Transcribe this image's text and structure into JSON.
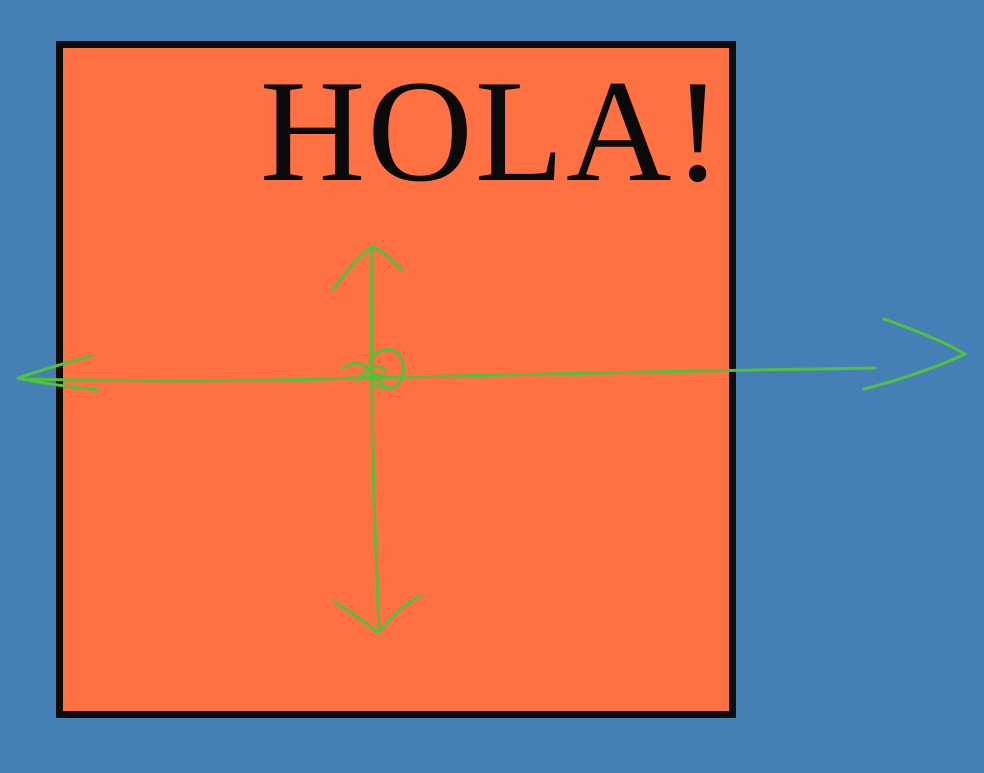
{
  "diagram": {
    "headline": "HOLA!",
    "colors": {
      "background": "#4480b5",
      "box_fill": "#ff7043",
      "box_border": "#0c0c0c",
      "axes": "#52c23b",
      "text": "#0a0a0a"
    },
    "icons": [
      "left-arrow-icon",
      "right-arrow-icon",
      "up-arrow-icon",
      "down-arrow-icon",
      "origin-mark-icon"
    ]
  }
}
